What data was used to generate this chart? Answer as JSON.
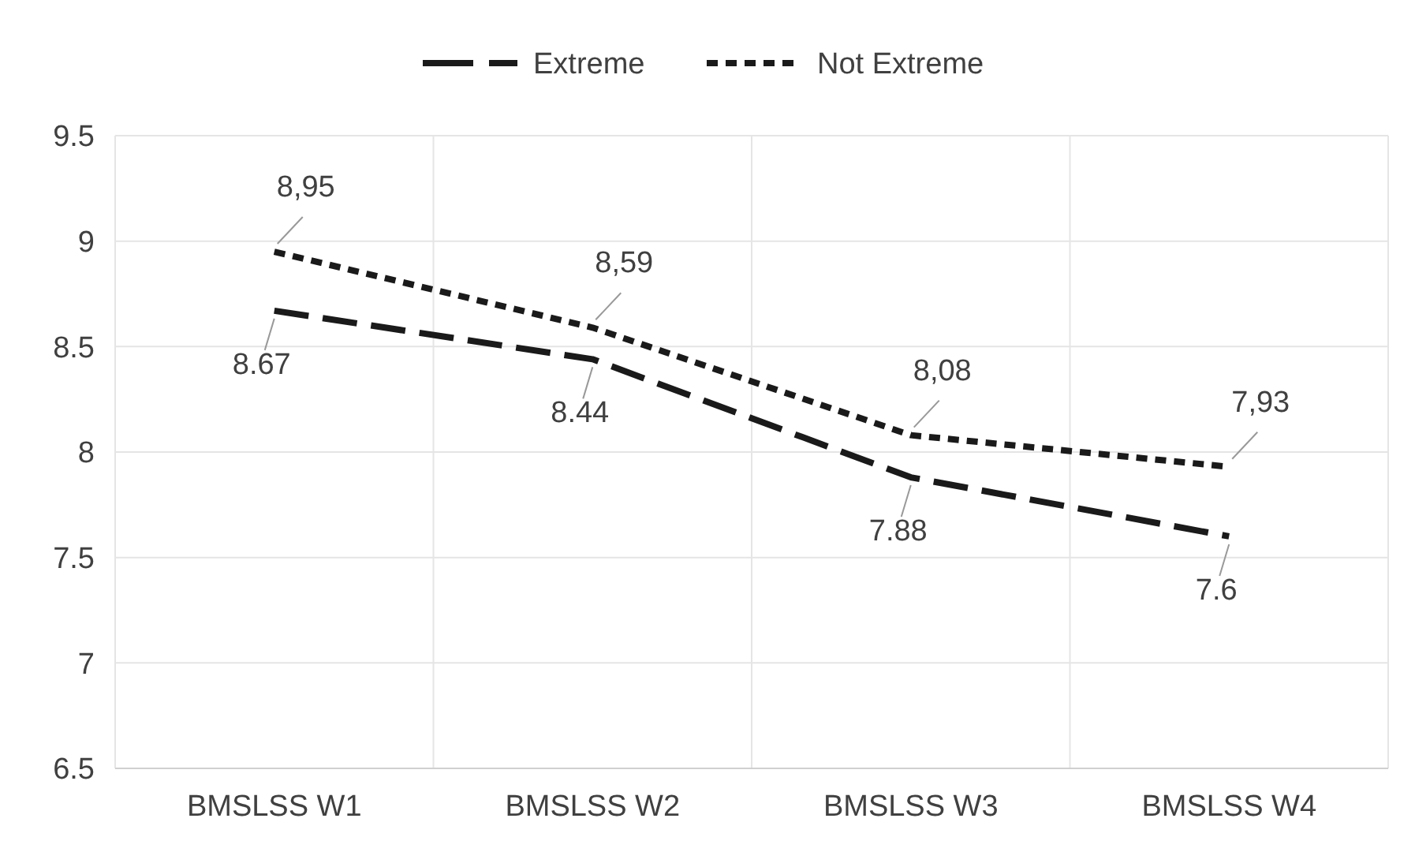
{
  "chart_data": {
    "type": "line",
    "categories": [
      "BMSLSS W1",
      "BMSLSS W2",
      "BMSLSS W3",
      "BMSLSS W4"
    ],
    "series": [
      {
        "name": "Extreme",
        "color": "#1a1a1a",
        "line_style": "dashed",
        "values": [
          8.67,
          8.44,
          7.88,
          7.6
        ],
        "value_labels": [
          "8.67",
          "8.44",
          "7.88",
          "7.6"
        ]
      },
      {
        "name": "Not Extreme",
        "color": "#1a1a1a",
        "line_style": "dotted",
        "values": [
          8.95,
          8.59,
          8.08,
          7.93
        ],
        "value_labels": [
          "8,95",
          "8,59",
          "8,08",
          "7,93"
        ]
      }
    ],
    "ylim": [
      6.5,
      9.5
    ],
    "yticks": [
      {
        "value": 6.5,
        "label": "6.5"
      },
      7,
      {
        "value": 7.5,
        "label": "7.5"
      },
      8,
      {
        "value": 8.5,
        "label": "8.5"
      },
      9,
      {
        "value": 9.5,
        "label": "9.5"
      }
    ],
    "grid": true,
    "legend": "top",
    "marker": "none"
  }
}
